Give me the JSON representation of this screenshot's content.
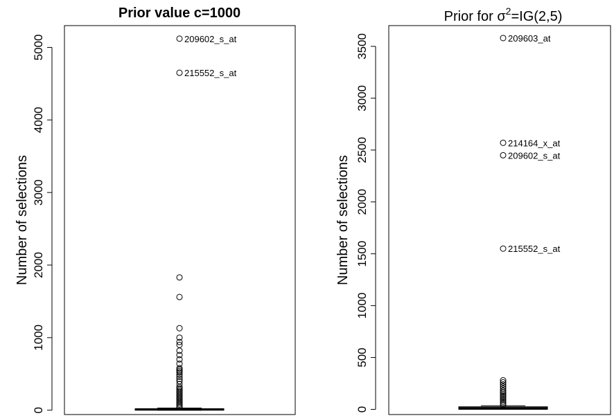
{
  "chart_data": [
    {
      "type": "box",
      "title": "Prior value c=1000",
      "ylabel": "Number of selections",
      "xlabel": "",
      "ylim": [
        -60,
        5300
      ],
      "yticks": [
        0,
        1000,
        2000,
        3000,
        4000,
        5000
      ],
      "ytick_labels": [
        "0",
        "1000",
        "2000",
        "3000",
        "4000",
        "5000"
      ],
      "box": {
        "q1": 0,
        "median": 10,
        "q3": 20,
        "whisker_low": 0,
        "whisker_high": 30
      },
      "outliers": [
        40,
        60,
        80,
        100,
        120,
        140,
        160,
        180,
        200,
        220,
        240,
        260,
        280,
        300,
        320,
        360,
        400,
        430,
        460,
        490,
        520,
        540,
        560,
        580,
        640,
        700,
        760,
        820,
        900,
        940,
        1000,
        1130,
        1560,
        1830,
        4650,
        5120
      ],
      "annotations": [
        {
          "label": "209602_s_at",
          "value": 5120
        },
        {
          "label": "215552_s_at",
          "value": 4650
        }
      ]
    },
    {
      "type": "box",
      "title_prefix": "Prior for ",
      "title_sigma": "σ",
      "title_sup": "2",
      "title_suffix": "=IG(2,5)",
      "ylabel": "Number of selections",
      "xlabel": "",
      "ylim": [
        -50,
        3700
      ],
      "yticks": [
        0,
        500,
        1000,
        1500,
        2000,
        2500,
        3000,
        3500
      ],
      "ytick_labels": [
        "0",
        "500",
        "1000",
        "1500",
        "2000",
        "2500",
        "3000",
        "3500"
      ],
      "box": {
        "q1": 0,
        "median": 12,
        "q3": 25,
        "whisker_low": 0,
        "whisker_high": 35
      },
      "outliers": [
        45,
        60,
        75,
        90,
        105,
        120,
        135,
        150,
        165,
        180,
        200,
        220,
        240,
        260,
        280,
        1550,
        2450,
        2570,
        3580
      ],
      "annotations": [
        {
          "label": "209603_at",
          "value": 3580
        },
        {
          "label": "214164_x_at",
          "value": 2570
        },
        {
          "label": "209602_s_at",
          "value": 2450
        },
        {
          "label": "215552_s_at",
          "value": 1550
        }
      ]
    }
  ]
}
